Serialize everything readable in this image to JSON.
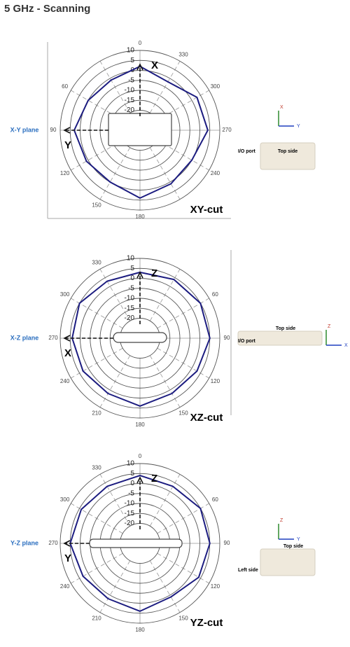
{
  "title": "5 GHz - Scanning",
  "chart_data": [
    {
      "type": "polar",
      "direction": "counterclockwise",
      "color": "#1c1c80",
      "plane": "X-Y plane",
      "top_axis": "X",
      "left_axis": "Y",
      "cut": "XY-cut",
      "icon_axes": [
        "X",
        "Y"
      ],
      "device_labels": [
        "I/O port",
        "Top side"
      ],
      "rlim": [
        -30,
        10
      ],
      "rticks": [
        -20,
        -15,
        -10,
        -5,
        0,
        5,
        10
      ],
      "thetaticks": [
        0,
        60,
        90,
        120,
        150,
        180,
        240,
        270,
        300,
        330
      ],
      "theta": [
        0,
        30,
        60,
        90,
        120,
        150,
        180,
        210,
        240,
        270,
        300,
        330
      ],
      "values": [
        2,
        -1,
        0,
        3,
        1,
        0,
        4,
        1,
        0,
        4,
        3,
        -2
      ]
    },
    {
      "type": "polar",
      "direction": "clockwise",
      "color": "#1c1c80",
      "plane": "X-Z plane",
      "top_axis": "Z",
      "left_axis": "X",
      "cut": "XZ-cut",
      "icon_axes": [
        "Z",
        "X"
      ],
      "device_labels": [
        "Top side",
        "I/O port"
      ],
      "rlim": [
        -30,
        10
      ],
      "rticks": [
        -20,
        -15,
        -10,
        -5,
        0,
        5,
        10
      ],
      "thetaticks": [
        60,
        90,
        120,
        150,
        180,
        210,
        240,
        270,
        300,
        330
      ],
      "theta": [
        0,
        30,
        60,
        90,
        120,
        150,
        180,
        210,
        240,
        270,
        300,
        330
      ],
      "values": [
        3,
        4,
        5,
        5,
        3,
        2,
        4,
        2,
        3,
        4,
        5,
        3
      ]
    },
    {
      "type": "polar",
      "direction": "clockwise",
      "color": "#1c1c80",
      "plane": "Y-Z plane",
      "top_axis": "Z",
      "left_axis": "Y",
      "cut": "YZ-cut",
      "icon_axes": [
        "Z",
        "Y"
      ],
      "device_labels": [
        "Top side",
        "Left side"
      ],
      "rlim": [
        -30,
        10
      ],
      "rticks": [
        -20,
        -15,
        -10,
        -5,
        0,
        5,
        10
      ],
      "thetaticks": [
        0,
        60,
        90,
        120,
        150,
        180,
        210,
        240,
        270,
        300,
        330
      ],
      "theta": [
        0,
        30,
        60,
        90,
        120,
        150,
        180,
        210,
        240,
        270,
        300,
        330
      ],
      "values": [
        4,
        3,
        5,
        5,
        4,
        1,
        4,
        2,
        3,
        5,
        4,
        3
      ]
    }
  ]
}
